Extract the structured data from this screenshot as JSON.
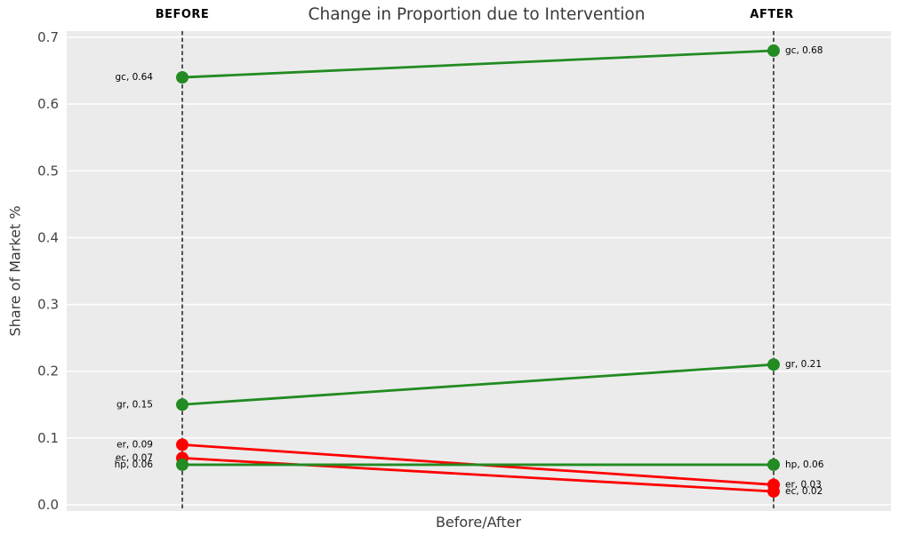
{
  "chart_data": {
    "type": "line",
    "variant": "slopegraph",
    "title": "Change in Proportion due to Intervention",
    "xlabel": "Before/After",
    "ylabel": "Share of Market %",
    "x_categories": [
      "BEFORE",
      "AFTER"
    ],
    "ylim": [
      0.0,
      0.7
    ],
    "yticks": [
      "0.0",
      "0.1",
      "0.2",
      "0.3",
      "0.4",
      "0.5",
      "0.6",
      "0.7"
    ],
    "grid": "horizontal white gridlines on gray panel",
    "legend": "none",
    "series": [
      {
        "name": "gc",
        "values": [
          0.64,
          0.68
        ],
        "trend": "increase",
        "color": "#228B22",
        "label_before": "gc, 0.64",
        "label_after": "gc, 0.68"
      },
      {
        "name": "gr",
        "values": [
          0.15,
          0.21
        ],
        "trend": "increase",
        "color": "#228B22",
        "label_before": "gr, 0.15",
        "label_after": "gr, 0.21"
      },
      {
        "name": "er",
        "values": [
          0.09,
          0.03
        ],
        "trend": "decrease",
        "color": "#FF0000",
        "label_before": "er, 0.09",
        "label_after": "er, 0.03"
      },
      {
        "name": "ec",
        "values": [
          0.07,
          0.02
        ],
        "trend": "decrease",
        "color": "#FF0000",
        "label_before": "ec, 0.07",
        "label_after": "ec, 0.02"
      },
      {
        "name": "hp",
        "values": [
          0.06,
          0.06
        ],
        "trend": "flat",
        "color": "#228B22",
        "label_before": "hp, 0.06",
        "label_after": "hp, 0.06"
      }
    ],
    "colors": {
      "increase": "#228B22",
      "decrease": "#FF0000",
      "panel_bg": "#EBEBEB",
      "gridline": "#FFFFFF",
      "axis_line": "#000000",
      "text": "#3A3A3A"
    }
  }
}
